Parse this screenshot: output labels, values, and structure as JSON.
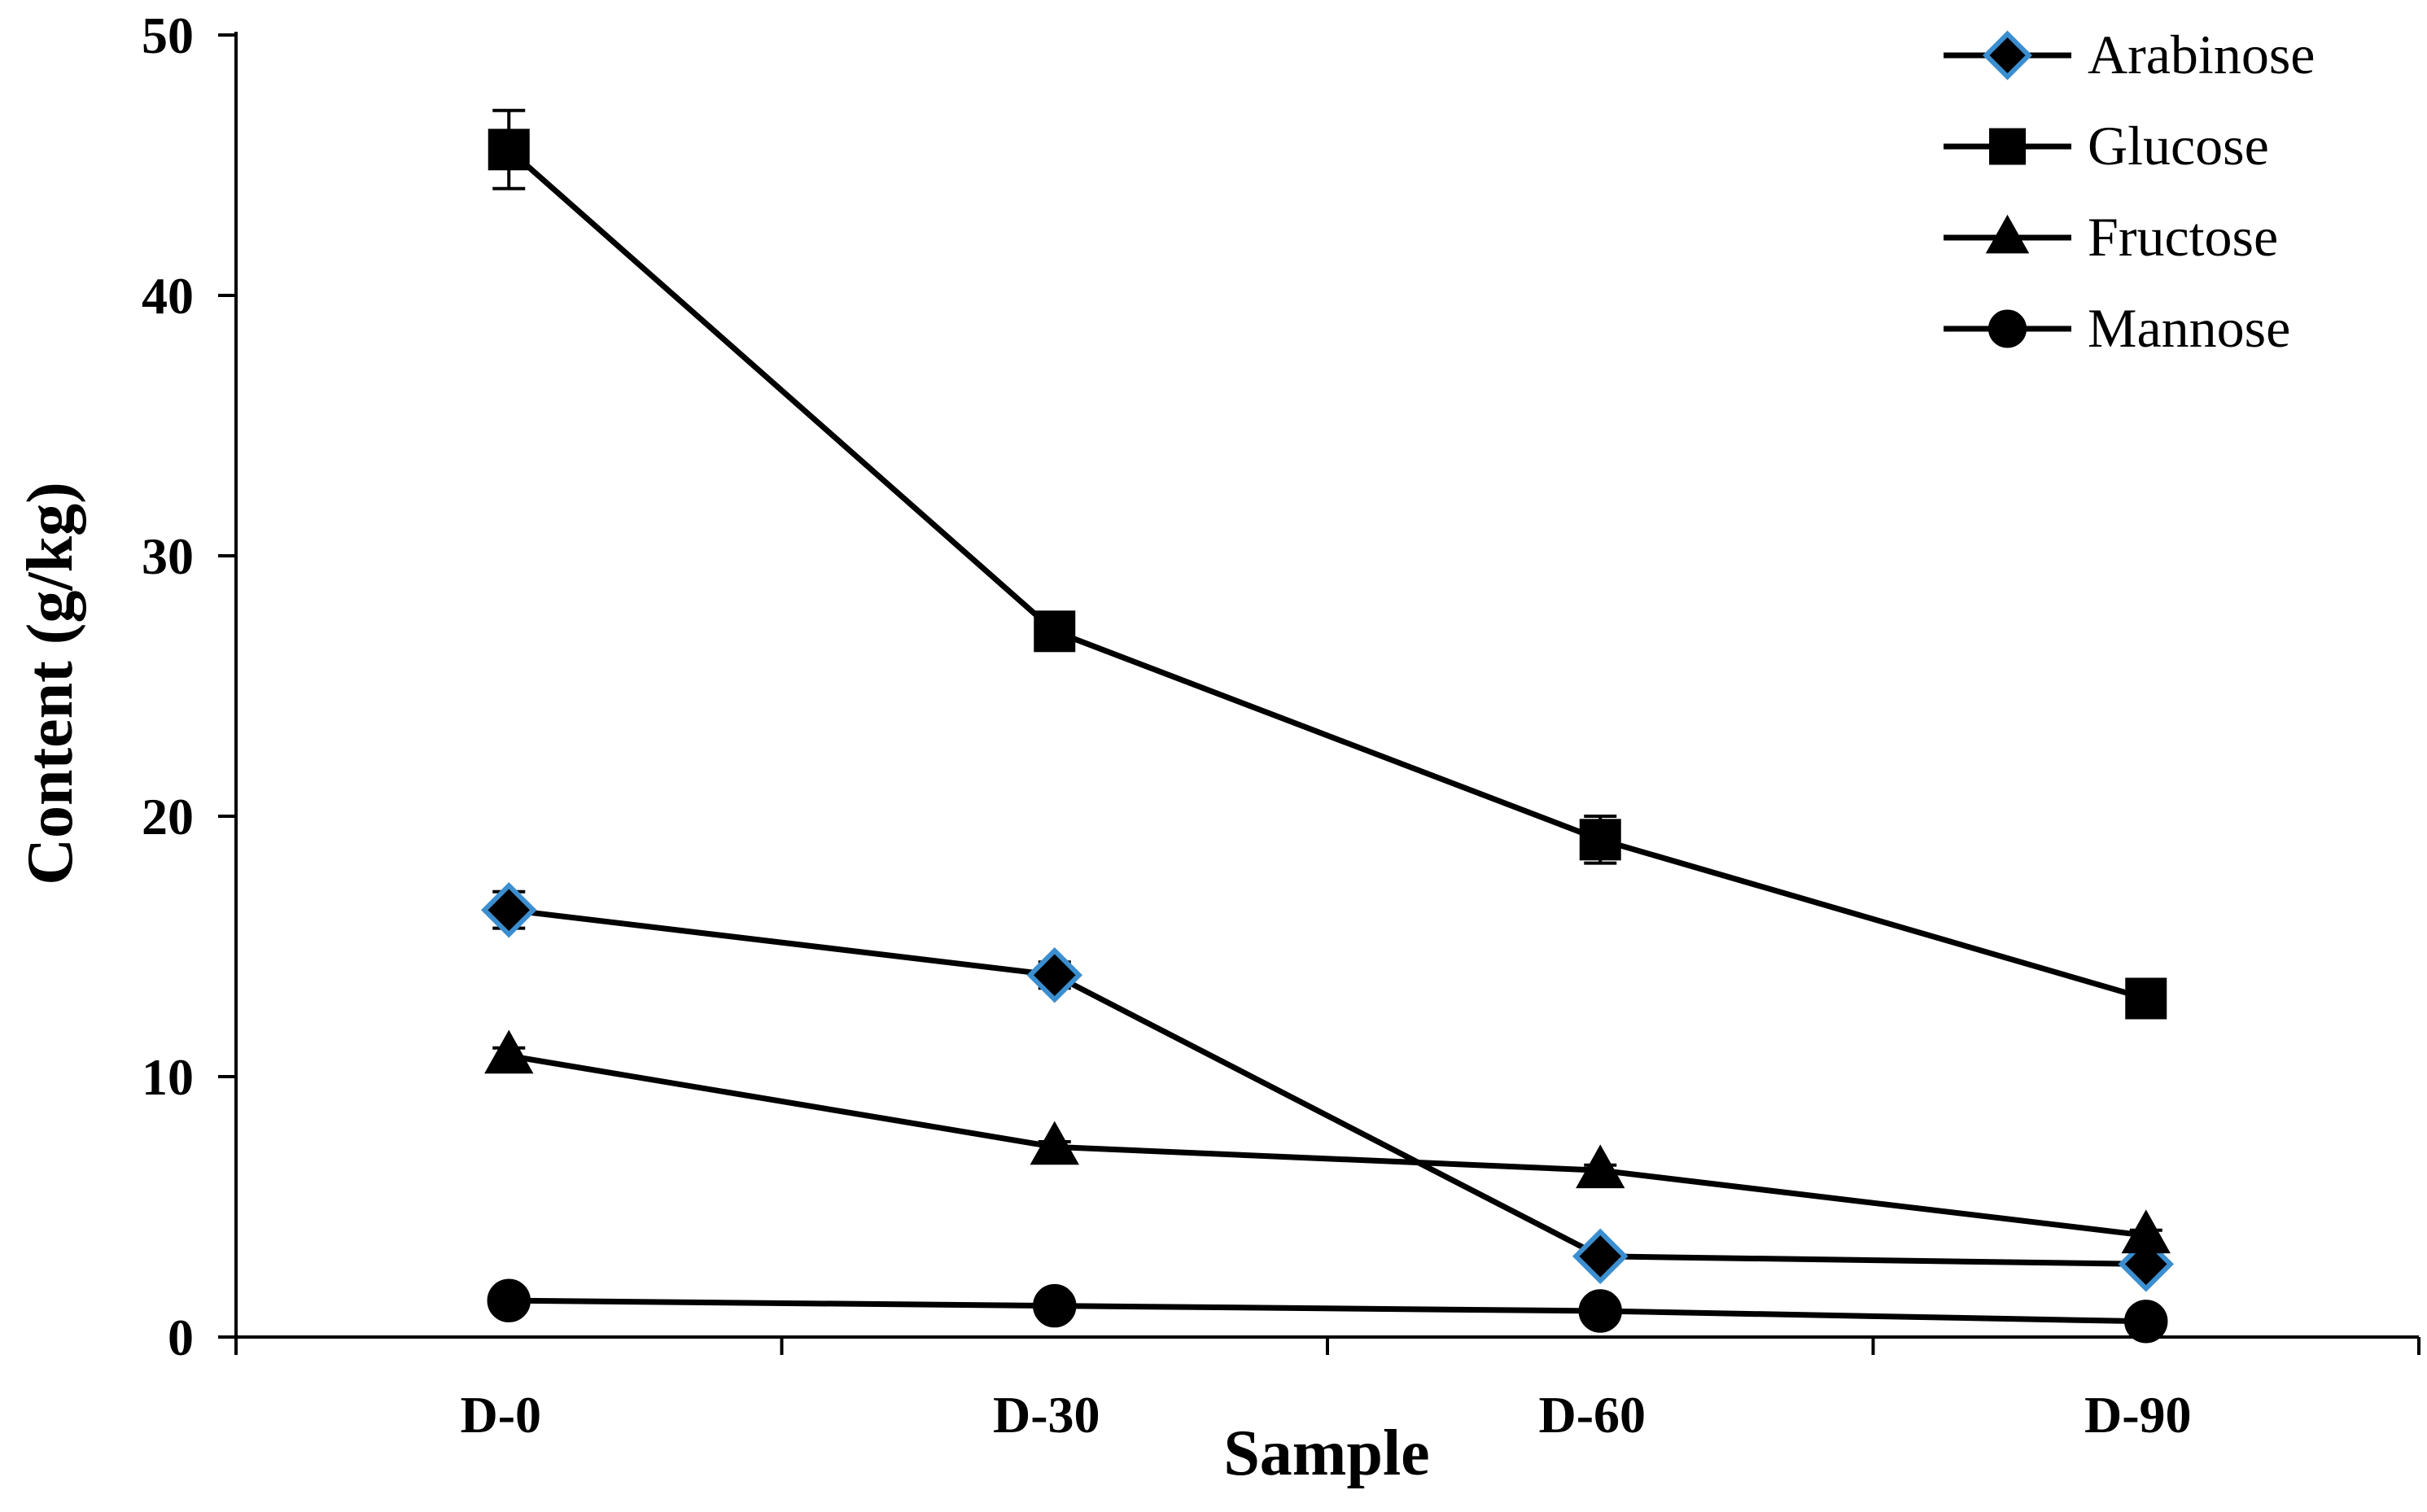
{
  "chart_data": {
    "type": "line",
    "title": "",
    "xlabel": "Sample",
    "ylabel": "Content (g/kg)",
    "categories": [
      "D-0",
      "D-30",
      "D-60",
      "D-90"
    ],
    "ylim": [
      0,
      50
    ],
    "yticks": [
      0,
      10,
      20,
      30,
      40,
      50
    ],
    "ytick_labels": [
      "0",
      "10",
      "20",
      "30",
      "40",
      "50"
    ],
    "grid": false,
    "legend_position": "top-right",
    "series": [
      {
        "name": "Arabinose",
        "marker": "diamond",
        "marker_fill": "#000000",
        "marker_stroke": "#3b8fd0",
        "values": [
          16.4,
          13.9,
          3.1,
          2.8
        ],
        "errors": [
          0.7,
          0.5,
          0.3,
          0.2
        ]
      },
      {
        "name": "Glucose",
        "marker": "square",
        "marker_fill": "#000000",
        "marker_stroke": "#000000",
        "values": [
          45.6,
          27.1,
          19.1,
          13.0
        ],
        "errors": [
          1.5,
          0.4,
          0.9,
          0.4
        ]
      },
      {
        "name": "Fructose",
        "marker": "triangle",
        "marker_fill": "#000000",
        "marker_stroke": "#000000",
        "values": [
          10.8,
          7.3,
          6.4,
          3.9
        ],
        "errors": [
          0.3,
          0.2,
          0.2,
          0.2
        ]
      },
      {
        "name": "Mannose",
        "marker": "circle",
        "marker_fill": "#000000",
        "marker_stroke": "#000000",
        "values": [
          1.4,
          1.2,
          1.0,
          0.6
        ],
        "errors": [
          0.1,
          0.1,
          0.1,
          0.1
        ]
      }
    ]
  }
}
